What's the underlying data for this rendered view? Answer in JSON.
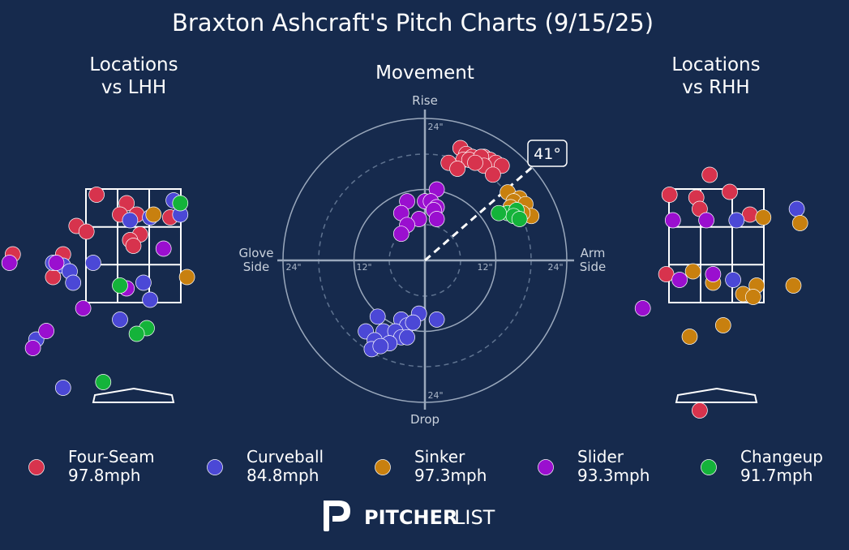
{
  "title": "Braxton Ashcraft's Pitch Charts (9/15/25)",
  "colors": {
    "background": "#162a4d",
    "Four-Seam": "#d7334d",
    "Curveball": "#4b48d6",
    "Sinker": "#c8800f",
    "Slider": "#9a0fcf",
    "Changeup": "#14b33a"
  },
  "branding": {
    "logo_icon": "pitcherlist-logo-icon",
    "text_bold": "PITCHER",
    "text_light": "LIST"
  },
  "chart_data": [
    {
      "type": "scatter",
      "title": "Locations\nvs LHH",
      "points": [
        {
          "pitch": "Four-Seam",
          "x": -0.55,
          "y": 3.4
        },
        {
          "pitch": "Four-Seam",
          "x": -0.1,
          "y": 3.25
        },
        {
          "pitch": "Four-Seam",
          "x": -0.2,
          "y": 3.05
        },
        {
          "pitch": "Four-Seam",
          "x": 0.05,
          "y": 3.05
        },
        {
          "pitch": "Four-Seam",
          "x": 0.55,
          "y": 3.0
        },
        {
          "pitch": "Four-Seam",
          "x": -0.85,
          "y": 2.85
        },
        {
          "pitch": "Four-Seam",
          "x": -0.7,
          "y": 2.75
        },
        {
          "pitch": "Four-Seam",
          "x": 0.1,
          "y": 2.7
        },
        {
          "pitch": "Four-Seam",
          "x": -0.05,
          "y": 2.6
        },
        {
          "pitch": "Four-Seam",
          "x": 0.0,
          "y": 2.5
        },
        {
          "pitch": "Four-Seam",
          "x": -1.8,
          "y": 2.35
        },
        {
          "pitch": "Four-Seam",
          "x": -1.05,
          "y": 2.35
        },
        {
          "pitch": "Four-Seam",
          "x": -1.2,
          "y": 1.95
        },
        {
          "pitch": "Curveball",
          "x": 0.6,
          "y": 3.3
        },
        {
          "pitch": "Curveball",
          "x": 0.7,
          "y": 3.05
        },
        {
          "pitch": "Curveball",
          "x": 0.25,
          "y": 3.0
        },
        {
          "pitch": "Curveball",
          "x": -0.05,
          "y": 2.95
        },
        {
          "pitch": "Curveball",
          "x": -0.6,
          "y": 2.2
        },
        {
          "pitch": "Curveball",
          "x": -1.2,
          "y": 2.2
        },
        {
          "pitch": "Curveball",
          "x": -1.05,
          "y": 2.15
        },
        {
          "pitch": "Curveball",
          "x": -0.95,
          "y": 2.05
        },
        {
          "pitch": "Curveball",
          "x": -0.9,
          "y": 1.85
        },
        {
          "pitch": "Curveball",
          "x": 0.15,
          "y": 1.85
        },
        {
          "pitch": "Curveball",
          "x": 0.25,
          "y": 1.55
        },
        {
          "pitch": "Curveball",
          "x": -0.2,
          "y": 1.2
        },
        {
          "pitch": "Curveball",
          "x": -1.45,
          "y": 0.85
        },
        {
          "pitch": "Curveball",
          "x": -1.05,
          "y": 0.0
        },
        {
          "pitch": "Sinker",
          "x": 0.3,
          "y": 3.05
        },
        {
          "pitch": "Sinker",
          "x": 0.8,
          "y": 1.95
        },
        {
          "pitch": "Slider",
          "x": -1.85,
          "y": 2.2
        },
        {
          "pitch": "Slider",
          "x": -1.15,
          "y": 2.2
        },
        {
          "pitch": "Slider",
          "x": -0.1,
          "y": 1.75
        },
        {
          "pitch": "Slider",
          "x": -0.75,
          "y": 1.4
        },
        {
          "pitch": "Slider",
          "x": 0.45,
          "y": 2.45
        },
        {
          "pitch": "Slider",
          "x": -1.3,
          "y": 1.0
        },
        {
          "pitch": "Slider",
          "x": -1.5,
          "y": 0.7
        },
        {
          "pitch": "Changeup",
          "x": 0.7,
          "y": 3.25
        },
        {
          "pitch": "Changeup",
          "x": -0.2,
          "y": 1.8
        },
        {
          "pitch": "Changeup",
          "x": 0.2,
          "y": 1.05
        },
        {
          "pitch": "Changeup",
          "x": 0.05,
          "y": 0.95
        },
        {
          "pitch": "Changeup",
          "x": -0.45,
          "y": 0.1
        }
      ]
    },
    {
      "type": "scatter",
      "title": "Movement",
      "radial_ticks": [
        "12\"",
        "24\""
      ],
      "axis_labels": {
        "top": "Rise",
        "bottom": "Drop",
        "left": "Glove\nSide",
        "right": "Arm\nSide"
      },
      "arm_angle_label": "41°",
      "arm_angle_deg": 41,
      "points": [
        {
          "pitch": "Four-Seam",
          "x": 6.0,
          "y": 19.0
        },
        {
          "pitch": "Four-Seam",
          "x": 7.0,
          "y": 18.0
        },
        {
          "pitch": "Four-Seam",
          "x": 8.0,
          "y": 17.5
        },
        {
          "pitch": "Four-Seam",
          "x": 9.0,
          "y": 17.0
        },
        {
          "pitch": "Four-Seam",
          "x": 10.0,
          "y": 17.5
        },
        {
          "pitch": "Four-Seam",
          "x": 11.0,
          "y": 17.0
        },
        {
          "pitch": "Four-Seam",
          "x": 12.0,
          "y": 16.5
        },
        {
          "pitch": "Four-Seam",
          "x": 6.5,
          "y": 17.0
        },
        {
          "pitch": "Four-Seam",
          "x": 7.5,
          "y": 17.0
        },
        {
          "pitch": "Four-Seam",
          "x": 9.5,
          "y": 17.5
        },
        {
          "pitch": "Four-Seam",
          "x": 10.0,
          "y": 16.0
        },
        {
          "pitch": "Four-Seam",
          "x": 8.5,
          "y": 16.5
        },
        {
          "pitch": "Four-Seam",
          "x": 4.0,
          "y": 16.5
        },
        {
          "pitch": "Four-Seam",
          "x": 5.5,
          "y": 15.5
        },
        {
          "pitch": "Four-Seam",
          "x": 13.0,
          "y": 16.0
        },
        {
          "pitch": "Four-Seam",
          "x": 11.5,
          "y": 14.5
        },
        {
          "pitch": "Sinker",
          "x": 14.0,
          "y": 11.5
        },
        {
          "pitch": "Sinker",
          "x": 16.0,
          "y": 10.5
        },
        {
          "pitch": "Sinker",
          "x": 15.0,
          "y": 10.0
        },
        {
          "pitch": "Sinker",
          "x": 17.0,
          "y": 9.5
        },
        {
          "pitch": "Sinker",
          "x": 14.5,
          "y": 9.0
        },
        {
          "pitch": "Sinker",
          "x": 18.0,
          "y": 7.5
        },
        {
          "pitch": "Sinker",
          "x": 16.5,
          "y": 8.0
        },
        {
          "pitch": "Sinker",
          "x": 15.5,
          "y": 7.5
        },
        {
          "pitch": "Changeup",
          "x": 14.0,
          "y": 8.0
        },
        {
          "pitch": "Changeup",
          "x": 15.5,
          "y": 8.5
        },
        {
          "pitch": "Changeup",
          "x": 15.0,
          "y": 7.5
        },
        {
          "pitch": "Changeup",
          "x": 16.0,
          "y": 7.0
        },
        {
          "pitch": "Changeup",
          "x": 12.5,
          "y": 8.0
        },
        {
          "pitch": "Slider",
          "x": 2.0,
          "y": 12.0
        },
        {
          "pitch": "Slider",
          "x": -3.0,
          "y": 10.0
        },
        {
          "pitch": "Slider",
          "x": 0.0,
          "y": 10.0
        },
        {
          "pitch": "Slider",
          "x": 1.0,
          "y": 10.0
        },
        {
          "pitch": "Slider",
          "x": 2.0,
          "y": 9.0
        },
        {
          "pitch": "Slider",
          "x": 1.5,
          "y": 8.5
        },
        {
          "pitch": "Slider",
          "x": -4.0,
          "y": 8.0
        },
        {
          "pitch": "Slider",
          "x": 2.0,
          "y": 7.0
        },
        {
          "pitch": "Slider",
          "x": -1.0,
          "y": 7.0
        },
        {
          "pitch": "Slider",
          "x": -3.0,
          "y": 6.0
        },
        {
          "pitch": "Slider",
          "x": -4.0,
          "y": 4.5
        },
        {
          "pitch": "Curveball",
          "x": -8.0,
          "y": -9.5
        },
        {
          "pitch": "Curveball",
          "x": -4.0,
          "y": -10.0
        },
        {
          "pitch": "Curveball",
          "x": -1.0,
          "y": -9.0
        },
        {
          "pitch": "Curveball",
          "x": -3.0,
          "y": -11.0
        },
        {
          "pitch": "Curveball",
          "x": -10.0,
          "y": -12.0
        },
        {
          "pitch": "Curveball",
          "x": -7.0,
          "y": -12.0
        },
        {
          "pitch": "Curveball",
          "x": -5.0,
          "y": -12.0
        },
        {
          "pitch": "Curveball",
          "x": -4.0,
          "y": -13.0
        },
        {
          "pitch": "Curveball",
          "x": -8.5,
          "y": -13.5
        },
        {
          "pitch": "Curveball",
          "x": -6.0,
          "y": -14.0
        },
        {
          "pitch": "Curveball",
          "x": -3.0,
          "y": -13.0
        },
        {
          "pitch": "Curveball",
          "x": -9.0,
          "y": -15.0
        },
        {
          "pitch": "Curveball",
          "x": -7.5,
          "y": -14.5
        },
        {
          "pitch": "Curveball",
          "x": 2.0,
          "y": -10.0
        },
        {
          "pitch": "Curveball",
          "x": -2.0,
          "y": -10.5
        }
      ]
    },
    {
      "type": "scatter",
      "title": "Locations\nvs RHH",
      "points": [
        {
          "pitch": "Four-Seam",
          "x": -0.1,
          "y": 3.75
        },
        {
          "pitch": "Four-Seam",
          "x": -0.7,
          "y": 3.4
        },
        {
          "pitch": "Four-Seam",
          "x": -0.3,
          "y": 3.35
        },
        {
          "pitch": "Four-Seam",
          "x": 0.2,
          "y": 3.45
        },
        {
          "pitch": "Four-Seam",
          "x": -0.25,
          "y": 3.15
        },
        {
          "pitch": "Four-Seam",
          "x": 0.5,
          "y": 3.05
        },
        {
          "pitch": "Four-Seam",
          "x": -0.75,
          "y": 2.0
        },
        {
          "pitch": "Four-Seam",
          "x": -0.25,
          "y": -0.4
        },
        {
          "pitch": "Curveball",
          "x": 1.2,
          "y": 3.15
        },
        {
          "pitch": "Curveball",
          "x": 0.3,
          "y": 2.95
        },
        {
          "pitch": "Curveball",
          "x": 0.25,
          "y": 1.9
        },
        {
          "pitch": "Sinker",
          "x": 0.7,
          "y": 3.0
        },
        {
          "pitch": "Sinker",
          "x": 1.25,
          "y": 2.9
        },
        {
          "pitch": "Sinker",
          "x": -0.35,
          "y": 2.05
        },
        {
          "pitch": "Sinker",
          "x": -0.05,
          "y": 1.85
        },
        {
          "pitch": "Sinker",
          "x": 0.6,
          "y": 1.8
        },
        {
          "pitch": "Sinker",
          "x": 1.15,
          "y": 1.8
        },
        {
          "pitch": "Sinker",
          "x": 0.4,
          "y": 1.65
        },
        {
          "pitch": "Sinker",
          "x": 0.55,
          "y": 1.6
        },
        {
          "pitch": "Sinker",
          "x": 0.1,
          "y": 1.1
        },
        {
          "pitch": "Sinker",
          "x": -0.4,
          "y": 0.9
        },
        {
          "pitch": "Slider",
          "x": -0.65,
          "y": 2.95
        },
        {
          "pitch": "Slider",
          "x": -0.15,
          "y": 2.95
        },
        {
          "pitch": "Slider",
          "x": -0.55,
          "y": 1.9
        },
        {
          "pitch": "Slider",
          "x": -0.05,
          "y": 2.0
        },
        {
          "pitch": "Slider",
          "x": -1.1,
          "y": 1.4
        }
      ]
    }
  ],
  "legend": [
    {
      "pitch": "Four-Seam",
      "speed": "97.8mph"
    },
    {
      "pitch": "Curveball",
      "speed": "84.8mph"
    },
    {
      "pitch": "Sinker",
      "speed": "97.3mph"
    },
    {
      "pitch": "Slider",
      "speed": "93.3mph"
    },
    {
      "pitch": "Changeup",
      "speed": "91.7mph"
    }
  ]
}
